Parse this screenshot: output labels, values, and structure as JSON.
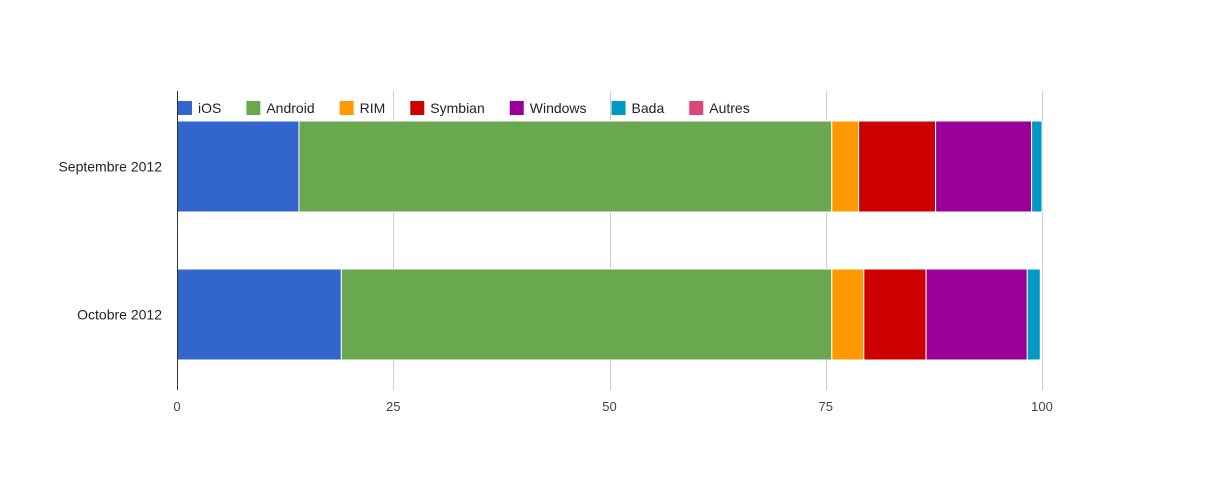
{
  "chart_data": {
    "type": "bar",
    "orientation": "horizontal",
    "stacked": true,
    "categories": [
      "Septembre 2012",
      "Octobre 2012"
    ],
    "series": [
      {
        "name": "iOS",
        "color": "#3366cc",
        "values": [
          14.1,
          19.0
        ]
      },
      {
        "name": "Android",
        "color": "#6aa84f",
        "values": [
          61.6,
          56.7
        ]
      },
      {
        "name": "RIM",
        "color": "#ff9900",
        "values": [
          3.1,
          3.7
        ]
      },
      {
        "name": "Symbian",
        "color": "#cc0000",
        "values": [
          8.9,
          7.2
        ]
      },
      {
        "name": "Windows",
        "color": "#990099",
        "values": [
          11.1,
          11.7
        ]
      },
      {
        "name": "Bada",
        "color": "#0099c6",
        "values": [
          1.2,
          1.5
        ]
      },
      {
        "name": "Autres",
        "color": "#dd4477",
        "values": [
          0,
          0
        ]
      }
    ],
    "xlim": [
      0,
      100
    ],
    "xticks": [
      0,
      25,
      50,
      75,
      100
    ],
    "xlabel": "",
    "ylabel": "",
    "title": "",
    "grid": true,
    "legend_position": "top-left"
  }
}
